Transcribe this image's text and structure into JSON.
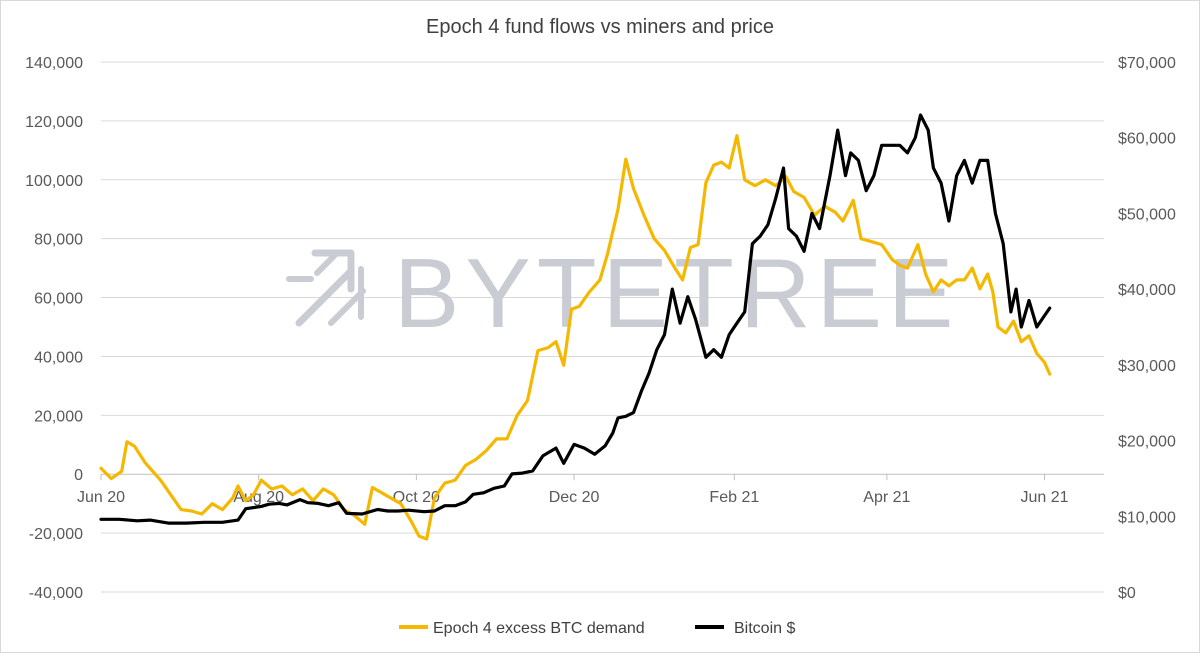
{
  "chart_data": {
    "type": "line",
    "title": "Epoch 4 fund flows vs miners and price",
    "watermark": "BYTETREE",
    "grid": true,
    "legend_position": "bottom",
    "x_ticks": [
      "Jun 20",
      "Aug 20",
      "Oct 20",
      "Dec 20",
      "Feb 21",
      "Apr 21",
      "Jun 21"
    ],
    "y_left": {
      "min": -40000,
      "max": 140000,
      "ticks": [
        140000,
        120000,
        100000,
        80000,
        60000,
        40000,
        20000,
        0,
        -20000,
        -40000
      ],
      "tick_labels": [
        "140,000",
        "120,000",
        "100,000",
        "80,000",
        "60,000",
        "40,000",
        "20,000",
        "0",
        "-20,000",
        "-40,000"
      ]
    },
    "y_right": {
      "min": 0,
      "max": 70000,
      "ticks": [
        70000,
        60000,
        50000,
        40000,
        30000,
        20000,
        10000,
        0
      ],
      "tick_labels": [
        "$70,000",
        "$60,000",
        "$50,000",
        "$40,000",
        "$30,000",
        "$20,000",
        "$10,000",
        "$0"
      ]
    },
    "series": [
      {
        "name": "Epoch 4 excess BTC demand",
        "axis": "left",
        "color": "#f5b800",
        "points": [
          [
            "2020-06-01",
            2000
          ],
          [
            "2020-06-05",
            -1500
          ],
          [
            "2020-06-09",
            1000
          ],
          [
            "2020-06-11",
            11000
          ],
          [
            "2020-06-14",
            9500
          ],
          [
            "2020-06-18",
            4000
          ],
          [
            "2020-06-24",
            -2000
          ],
          [
            "2020-06-28",
            -7000
          ],
          [
            "2020-07-02",
            -12000
          ],
          [
            "2020-07-06",
            -12500
          ],
          [
            "2020-07-10",
            -13500
          ],
          [
            "2020-07-14",
            -10000
          ],
          [
            "2020-07-18",
            -12000
          ],
          [
            "2020-07-22",
            -8000
          ],
          [
            "2020-07-24",
            -4000
          ],
          [
            "2020-07-27",
            -9000
          ],
          [
            "2020-07-30",
            -7000
          ],
          [
            "2020-08-02",
            -2000
          ],
          [
            "2020-08-06",
            -5000
          ],
          [
            "2020-08-10",
            -4000
          ],
          [
            "2020-08-14",
            -7000
          ],
          [
            "2020-08-18",
            -5000
          ],
          [
            "2020-08-22",
            -9000
          ],
          [
            "2020-08-26",
            -5000
          ],
          [
            "2020-08-30",
            -7000
          ],
          [
            "2020-09-03",
            -12000
          ],
          [
            "2020-09-07",
            -14000
          ],
          [
            "2020-09-11",
            -17000
          ],
          [
            "2020-09-14",
            -4500
          ],
          [
            "2020-09-17",
            -6000
          ],
          [
            "2020-09-21",
            -8000
          ],
          [
            "2020-09-25",
            -10000
          ],
          [
            "2020-09-29",
            -16000
          ],
          [
            "2020-10-02",
            -21000
          ],
          [
            "2020-10-05",
            -22000
          ],
          [
            "2020-10-08",
            -8000
          ],
          [
            "2020-10-12",
            -3000
          ],
          [
            "2020-10-16",
            -2000
          ],
          [
            "2020-10-20",
            3000
          ],
          [
            "2020-10-24",
            5000
          ],
          [
            "2020-10-28",
            8000
          ],
          [
            "2020-11-01",
            12000
          ],
          [
            "2020-11-05",
            12000
          ],
          [
            "2020-11-09",
            20000
          ],
          [
            "2020-11-13",
            25000
          ],
          [
            "2020-11-17",
            42000
          ],
          [
            "2020-11-21",
            43000
          ],
          [
            "2020-11-24",
            45000
          ],
          [
            "2020-11-27",
            37000
          ],
          [
            "2020-11-30",
            56000
          ],
          [
            "2020-12-03",
            57000
          ],
          [
            "2020-12-07",
            62000
          ],
          [
            "2020-12-11",
            66000
          ],
          [
            "2020-12-14",
            75000
          ],
          [
            "2020-12-18",
            90000
          ],
          [
            "2020-12-21",
            107000
          ],
          [
            "2020-12-24",
            97000
          ],
          [
            "2020-12-28",
            88000
          ],
          [
            "2021-01-01",
            80000
          ],
          [
            "2021-01-05",
            76000
          ],
          [
            "2021-01-09",
            70000
          ],
          [
            "2021-01-12",
            66000
          ],
          [
            "2021-01-15",
            77000
          ],
          [
            "2021-01-18",
            78000
          ],
          [
            "2021-01-21",
            99000
          ],
          [
            "2021-01-24",
            105000
          ],
          [
            "2021-01-27",
            106000
          ],
          [
            "2021-01-30",
            104000
          ],
          [
            "2021-02-02",
            115000
          ],
          [
            "2021-02-05",
            100000
          ],
          [
            "2021-02-09",
            98000
          ],
          [
            "2021-02-13",
            100000
          ],
          [
            "2021-02-17",
            98000
          ],
          [
            "2021-02-21",
            101000
          ],
          [
            "2021-02-24",
            96000
          ],
          [
            "2021-02-28",
            94000
          ],
          [
            "2021-03-04",
            88000
          ],
          [
            "2021-03-08",
            91000
          ],
          [
            "2021-03-12",
            89000
          ],
          [
            "2021-03-15",
            86000
          ],
          [
            "2021-03-19",
            93000
          ],
          [
            "2021-03-22",
            80000
          ],
          [
            "2021-03-26",
            79000
          ],
          [
            "2021-03-30",
            78000
          ],
          [
            "2021-04-03",
            73000
          ],
          [
            "2021-04-06",
            71000
          ],
          [
            "2021-04-09",
            70000
          ],
          [
            "2021-04-13",
            78000
          ],
          [
            "2021-04-16",
            68000
          ],
          [
            "2021-04-19",
            62000
          ],
          [
            "2021-04-22",
            66000
          ],
          [
            "2021-04-25",
            64000
          ],
          [
            "2021-04-28",
            66000
          ],
          [
            "2021-05-01",
            66000
          ],
          [
            "2021-05-04",
            70000
          ],
          [
            "2021-05-07",
            63000
          ],
          [
            "2021-05-10",
            68000
          ],
          [
            "2021-05-12",
            62000
          ],
          [
            "2021-05-14",
            50000
          ],
          [
            "2021-05-17",
            48000
          ],
          [
            "2021-05-20",
            52000
          ],
          [
            "2021-05-23",
            45000
          ],
          [
            "2021-05-26",
            47000
          ],
          [
            "2021-05-29",
            41000
          ],
          [
            "2021-06-01",
            38000
          ],
          [
            "2021-06-03",
            34000
          ]
        ]
      },
      {
        "name": "Bitcoin $",
        "axis": "right",
        "color": "#000000",
        "points": [
          [
            "2020-06-01",
            9600
          ],
          [
            "2020-06-08",
            9600
          ],
          [
            "2020-06-15",
            9400
          ],
          [
            "2020-06-20",
            9500
          ],
          [
            "2020-06-27",
            9100
          ],
          [
            "2020-07-04",
            9100
          ],
          [
            "2020-07-11",
            9200
          ],
          [
            "2020-07-18",
            9200
          ],
          [
            "2020-07-24",
            9500
          ],
          [
            "2020-07-27",
            11000
          ],
          [
            "2020-08-02",
            11300
          ],
          [
            "2020-08-05",
            11600
          ],
          [
            "2020-08-09",
            11700
          ],
          [
            "2020-08-12",
            11500
          ],
          [
            "2020-08-17",
            12200
          ],
          [
            "2020-08-20",
            11800
          ],
          [
            "2020-08-24",
            11700
          ],
          [
            "2020-08-28",
            11400
          ],
          [
            "2020-09-01",
            11800
          ],
          [
            "2020-09-04",
            10400
          ],
          [
            "2020-09-10",
            10300
          ],
          [
            "2020-09-16",
            10900
          ],
          [
            "2020-09-20",
            10700
          ],
          [
            "2020-09-24",
            10700
          ],
          [
            "2020-09-28",
            10800
          ],
          [
            "2020-10-04",
            10600
          ],
          [
            "2020-10-08",
            10700
          ],
          [
            "2020-10-12",
            11400
          ],
          [
            "2020-10-16",
            11400
          ],
          [
            "2020-10-20",
            11900
          ],
          [
            "2020-10-23",
            12900
          ],
          [
            "2020-10-27",
            13100
          ],
          [
            "2020-10-31",
            13700
          ],
          [
            "2020-11-04",
            14000
          ],
          [
            "2020-11-07",
            15600
          ],
          [
            "2020-11-11",
            15700
          ],
          [
            "2020-11-15",
            16000
          ],
          [
            "2020-11-19",
            18000
          ],
          [
            "2020-11-24",
            19000
          ],
          [
            "2020-11-27",
            17000
          ],
          [
            "2020-12-01",
            19500
          ],
          [
            "2020-12-05",
            19000
          ],
          [
            "2020-12-09",
            18200
          ],
          [
            "2020-12-13",
            19300
          ],
          [
            "2020-12-16",
            21000
          ],
          [
            "2020-12-18",
            23000
          ],
          [
            "2020-12-21",
            23200
          ],
          [
            "2020-12-24",
            23700
          ],
          [
            "2020-12-27",
            26500
          ],
          [
            "2020-12-30",
            28900
          ],
          [
            "2021-01-02",
            32000
          ],
          [
            "2021-01-05",
            34000
          ],
          [
            "2021-01-08",
            40000
          ],
          [
            "2021-01-11",
            35500
          ],
          [
            "2021-01-14",
            39000
          ],
          [
            "2021-01-17",
            36000
          ],
          [
            "2021-01-21",
            31000
          ],
          [
            "2021-01-24",
            32000
          ],
          [
            "2021-01-27",
            31000
          ],
          [
            "2021-01-30",
            34000
          ],
          [
            "2021-02-02",
            35500
          ],
          [
            "2021-02-05",
            37000
          ],
          [
            "2021-02-08",
            46000
          ],
          [
            "2021-02-11",
            47000
          ],
          [
            "2021-02-14",
            48500
          ],
          [
            "2021-02-17",
            52000
          ],
          [
            "2021-02-20",
            56000
          ],
          [
            "2021-02-22",
            48000
          ],
          [
            "2021-02-25",
            47000
          ],
          [
            "2021-02-28",
            45000
          ],
          [
            "2021-03-03",
            50000
          ],
          [
            "2021-03-06",
            48000
          ],
          [
            "2021-03-10",
            55000
          ],
          [
            "2021-03-13",
            61000
          ],
          [
            "2021-03-16",
            55000
          ],
          [
            "2021-03-18",
            58000
          ],
          [
            "2021-03-21",
            57000
          ],
          [
            "2021-03-24",
            53000
          ],
          [
            "2021-03-27",
            55000
          ],
          [
            "2021-03-30",
            59000
          ],
          [
            "2021-04-02",
            59000
          ],
          [
            "2021-04-06",
            59000
          ],
          [
            "2021-04-09",
            58000
          ],
          [
            "2021-04-12",
            60000
          ],
          [
            "2021-04-14",
            63000
          ],
          [
            "2021-04-17",
            61000
          ],
          [
            "2021-04-19",
            56000
          ],
          [
            "2021-04-22",
            54000
          ],
          [
            "2021-04-25",
            49000
          ],
          [
            "2021-04-28",
            55000
          ],
          [
            "2021-05-01",
            57000
          ],
          [
            "2021-05-04",
            54000
          ],
          [
            "2021-05-07",
            57000
          ],
          [
            "2021-05-10",
            57000
          ],
          [
            "2021-05-13",
            50000
          ],
          [
            "2021-05-16",
            46000
          ],
          [
            "2021-05-19",
            37000
          ],
          [
            "2021-05-21",
            40000
          ],
          [
            "2021-05-23",
            35000
          ],
          [
            "2021-05-26",
            38500
          ],
          [
            "2021-05-29",
            35000
          ],
          [
            "2021-06-01",
            36500
          ],
          [
            "2021-06-03",
            37500
          ]
        ]
      }
    ]
  }
}
